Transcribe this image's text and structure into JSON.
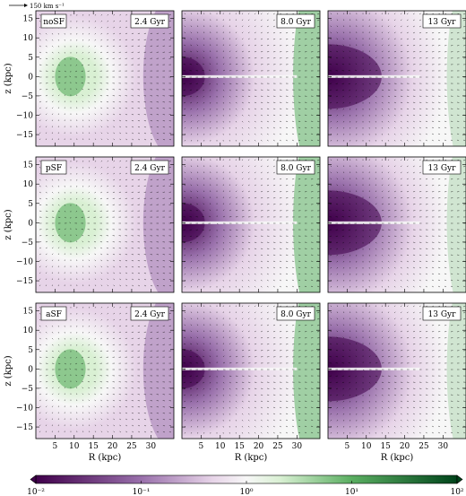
{
  "scale_arrow_label": "150 km s⁻¹",
  "row_labels": [
    "noSF",
    "pSF",
    "aSF"
  ],
  "column_times": [
    "2.4 Gyr",
    "8.0 Gyr",
    "13 Gyr"
  ],
  "colors": {
    "purple_dark": "#40004b",
    "purple_mid": "#9970ab",
    "purple_light": "#e7d4e8",
    "neutral": "#f7f7f7",
    "green_light": "#d9f0d3",
    "green_mid": "#5aae61",
    "green_dark": "#00441b"
  },
  "chart_data": {
    "type": "heatmap",
    "panels_grid": "3 rows x 3 columns",
    "xlabel": "R (kpc)",
    "ylabel": "z (kpc)",
    "xticks": [
      5,
      10,
      15,
      20,
      25,
      30
    ],
    "yticks": [
      -15,
      -10,
      -5,
      0,
      5,
      10,
      15
    ],
    "xlim": [
      0,
      36
    ],
    "ylim": [
      -18,
      17
    ],
    "overlay": "velocity vector field",
    "colorbar": {
      "orientation": "horizontal",
      "scale": "log",
      "range": [
        0.01,
        100
      ],
      "ticks": [
        "10⁻²",
        "10⁻¹",
        "10⁰",
        "10¹",
        "10²"
      ],
      "colormap": "purple-green diverging"
    },
    "panels": [
      {
        "row": "noSF",
        "time": "2.4 Gyr"
      },
      {
        "row": "noSF",
        "time": "8.0 Gyr"
      },
      {
        "row": "noSF",
        "time": "13 Gyr"
      },
      {
        "row": "pSF",
        "time": "2.4 Gyr"
      },
      {
        "row": "pSF",
        "time": "8.0 Gyr"
      },
      {
        "row": "pSF",
        "time": "13 Gyr"
      },
      {
        "row": "aSF",
        "time": "2.4 Gyr"
      },
      {
        "row": "aSF",
        "time": "8.0 Gyr"
      },
      {
        "row": "aSF",
        "time": "13 Gyr"
      }
    ]
  }
}
